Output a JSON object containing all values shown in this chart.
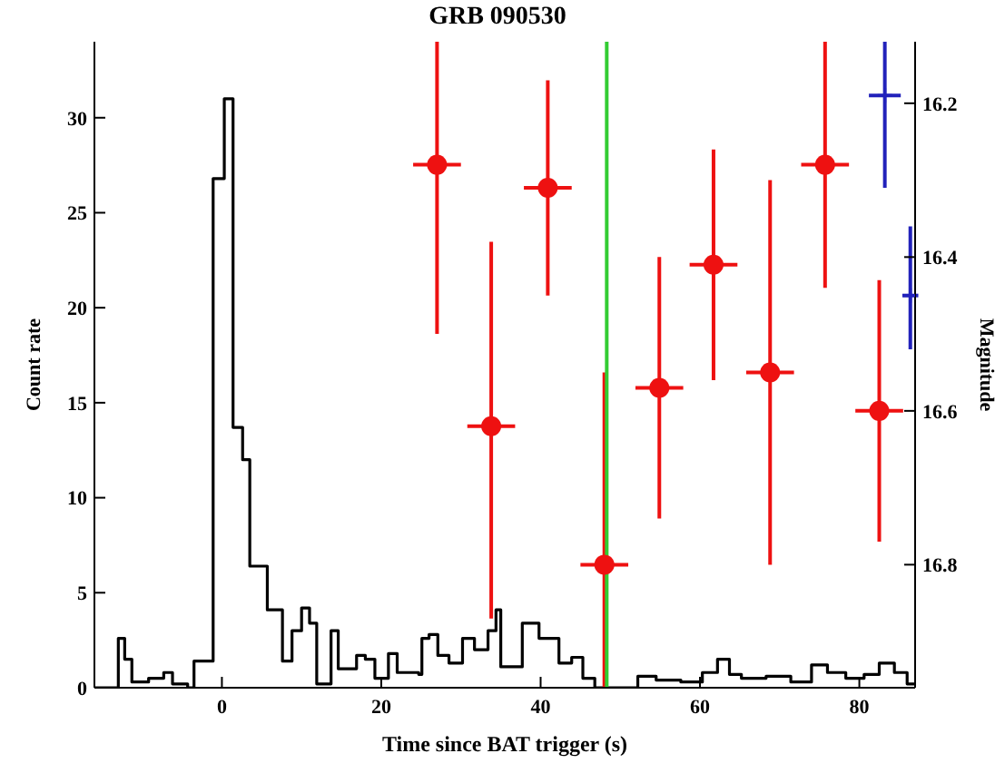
{
  "chart_data": {
    "type": "scatter",
    "title": "GRB 090530",
    "xlabel": "Time since BAT trigger (s)",
    "ylabel": "Count rate",
    "y2label": "Magnitude",
    "xlim": [
      -16,
      87
    ],
    "xticks": [
      0,
      20,
      40,
      60,
      80
    ],
    "ylim": [
      0,
      34
    ],
    "yticks": [
      0,
      5,
      10,
      15,
      20,
      25,
      30
    ],
    "y2lim": [
      16.96,
      16.12
    ],
    "y2ticks": [
      16.2,
      16.4,
      16.6,
      16.8
    ],
    "grid": false,
    "legend": false,
    "marker": "circle",
    "ref_lines": [
      {
        "axis": "x",
        "value": 48.3,
        "color": "#33cc33"
      }
    ],
    "series": [
      {
        "type": "step",
        "marker": "none",
        "color": "#000000",
        "x": [
          -16,
          -13,
          -12.2,
          -11.3,
          -9.2,
          -7.3,
          -6.2,
          -4.3,
          -3.5,
          -1.1,
          0.3,
          1.4,
          2.6,
          3.5,
          5.7,
          7.6,
          8.8,
          10,
          11,
          11.9,
          13.7,
          14.6,
          16.9,
          18,
          19.2,
          20.9,
          22,
          24.7,
          25.1,
          26,
          27.1,
          28.5,
          30.2,
          31.7,
          33.4,
          34.4,
          35,
          37.7,
          39.8,
          42.3,
          43.9,
          45.3,
          46.8,
          49.1,
          52.2,
          54.5,
          57.6,
          60.3,
          62.2,
          63.7,
          65.2,
          68.3,
          71.4,
          74,
          76,
          78.3,
          80.6,
          82.5,
          84.4,
          86,
          87
        ],
        "values": [
          0,
          2.6,
          1.5,
          0.3,
          0.5,
          0.8,
          0.2,
          0,
          1.4,
          26.8,
          31,
          13.7,
          12,
          6.4,
          4.1,
          1.4,
          3,
          4.2,
          3.4,
          0.2,
          3,
          1,
          1.7,
          1.5,
          0.5,
          1.8,
          0.8,
          0.7,
          2.6,
          2.8,
          1.7,
          1.3,
          2.6,
          2,
          3,
          4.1,
          1.1,
          3.4,
          2.6,
          1.3,
          1.6,
          0.5,
          0,
          0,
          0.6,
          0.4,
          0.3,
          0.8,
          1.5,
          0.7,
          0.5,
          0.6,
          0.3,
          1.2,
          0.8,
          0.5,
          0.7,
          1.3,
          0.8,
          0.2,
          0.2
        ]
      },
      {
        "axis": "y2",
        "color": "#ee1111",
        "x": [
          27,
          33.8,
          40.9,
          48,
          54.9,
          61.7,
          68.8,
          75.7,
          82.5
        ],
        "values": [
          16.28,
          16.62,
          16.31,
          16.8,
          16.57,
          16.41,
          16.55,
          16.28,
          16.6
        ],
        "errors": [
          [
            16.12,
            16.5
          ],
          [
            16.38,
            16.87
          ],
          [
            16.17,
            16.45
          ],
          [
            16.55,
            16.96
          ],
          [
            16.4,
            16.74
          ],
          [
            16.26,
            16.56
          ],
          [
            16.3,
            16.8
          ],
          [
            16.12,
            16.44
          ],
          [
            16.43,
            16.77
          ]
        ],
        "xerrors": [
          3,
          3,
          3,
          3,
          3,
          3,
          3,
          3,
          3
        ]
      },
      {
        "type": "scatter",
        "axis": "y2",
        "color": "#2222bb",
        "marker": "cross",
        "x": [
          83.2,
          86.4
        ],
        "values": [
          16.19,
          16.45
        ],
        "errors": [
          [
            16.12,
            16.31
          ],
          [
            16.36,
            16.52
          ]
        ],
        "xerrors": [
          2,
          1
        ]
      }
    ]
  }
}
